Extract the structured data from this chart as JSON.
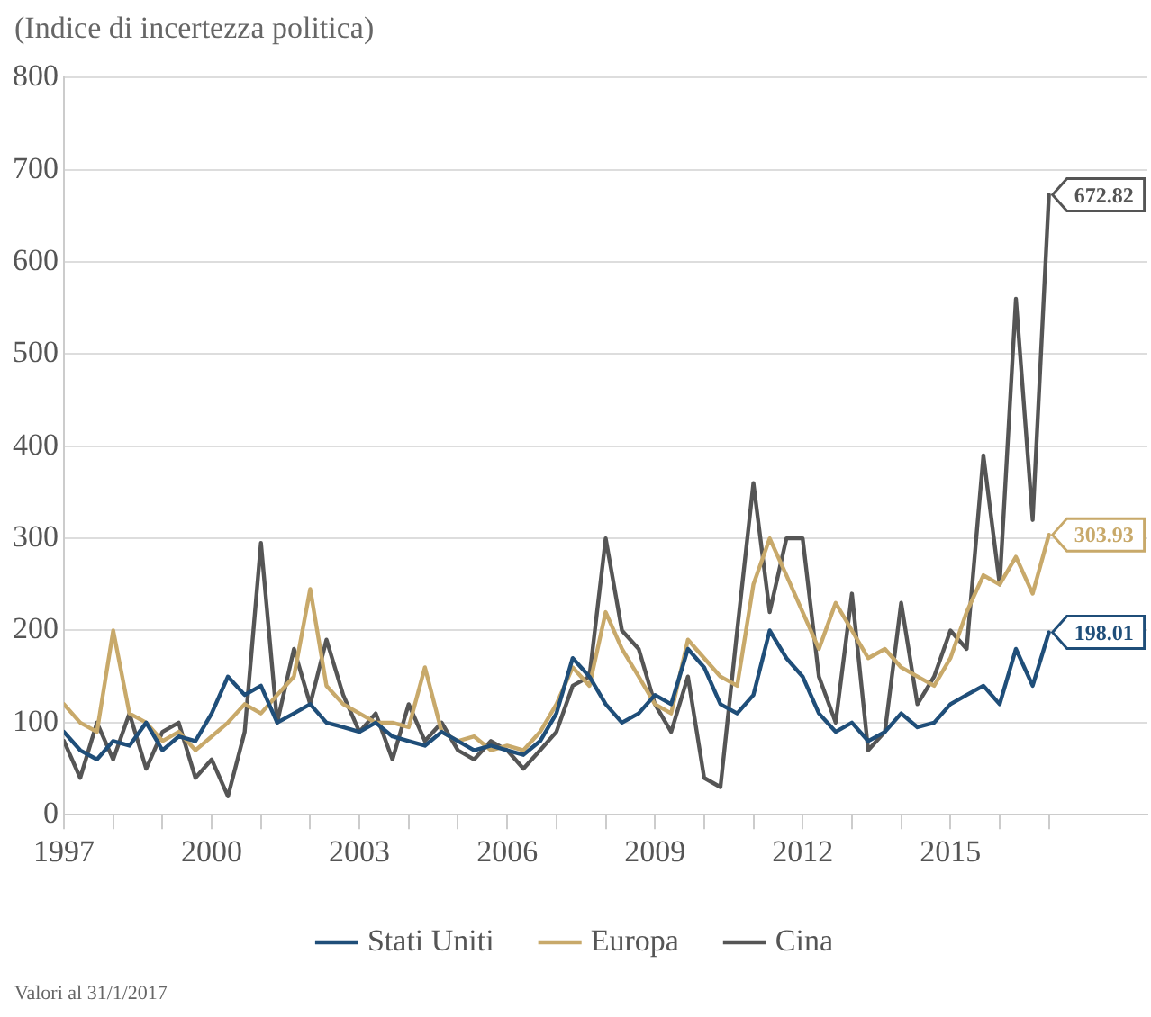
{
  "chart_data": {
    "type": "line",
    "ylabel": "(Indice di incertezza politica)",
    "x": [
      1997,
      1997.33,
      1997.67,
      1998,
      1998.33,
      1998.67,
      1999,
      1999.33,
      1999.67,
      2000,
      2000.33,
      2000.67,
      2001,
      2001.33,
      2001.67,
      2002,
      2002.33,
      2002.67,
      2003,
      2003.33,
      2003.67,
      2004,
      2004.33,
      2004.67,
      2005,
      2005.33,
      2005.67,
      2006,
      2006.33,
      2006.67,
      2007,
      2007.33,
      2007.67,
      2008,
      2008.33,
      2008.67,
      2009,
      2009.33,
      2009.67,
      2010,
      2010.33,
      2010.67,
      2011,
      2011.33,
      2011.67,
      2012,
      2012.33,
      2012.67,
      2013,
      2013.33,
      2013.67,
      2014,
      2014.33,
      2014.67,
      2015,
      2015.33,
      2015.67,
      2016,
      2016.33,
      2016.67,
      2017
    ],
    "series": [
      {
        "name": "Stati Uniti",
        "color": "#1f4e79",
        "values": [
          90,
          70,
          60,
          80,
          75,
          100,
          70,
          85,
          80,
          110,
          150,
          130,
          140,
          100,
          110,
          120,
          100,
          95,
          90,
          100,
          85,
          80,
          75,
          90,
          80,
          70,
          75,
          70,
          65,
          80,
          110,
          170,
          150,
          120,
          100,
          110,
          130,
          120,
          180,
          160,
          120,
          110,
          130,
          200,
          170,
          150,
          110,
          90,
          100,
          80,
          90,
          110,
          95,
          100,
          120,
          130,
          140,
          120,
          180,
          140,
          198.01
        ],
        "value_labels": [
          null,
          null,
          null,
          null,
          null,
          null,
          null,
          null,
          null,
          null,
          null,
          null,
          null,
          null,
          null,
          null,
          null,
          null,
          null,
          null,
          null,
          null,
          null,
          null,
          null,
          null,
          null,
          null,
          null,
          null,
          null,
          null,
          null,
          null,
          null,
          null,
          null,
          null,
          null,
          null,
          null,
          null,
          null,
          null,
          null,
          null,
          null,
          null,
          null,
          null,
          null,
          null,
          null,
          null,
          null,
          null,
          null,
          null,
          null,
          null,
          "198.01"
        ]
      },
      {
        "name": "Europa",
        "color": "#c8a96a",
        "values": [
          120,
          100,
          90,
          200,
          110,
          100,
          80,
          90,
          70,
          85,
          100,
          120,
          110,
          130,
          150,
          245,
          140,
          120,
          110,
          100,
          100,
          95,
          160,
          90,
          80,
          85,
          70,
          75,
          70,
          90,
          120,
          160,
          140,
          220,
          180,
          150,
          120,
          110,
          190,
          170,
          150,
          140,
          250,
          300,
          260,
          220,
          180,
          230,
          200,
          170,
          180,
          160,
          150,
          140,
          170,
          220,
          260,
          250,
          280,
          240,
          303.93
        ],
        "value_labels": [
          null,
          null,
          null,
          null,
          null,
          null,
          null,
          null,
          null,
          null,
          null,
          null,
          null,
          null,
          null,
          null,
          null,
          null,
          null,
          null,
          null,
          null,
          null,
          null,
          null,
          null,
          null,
          null,
          null,
          null,
          null,
          null,
          null,
          null,
          null,
          null,
          null,
          null,
          null,
          null,
          null,
          null,
          null,
          null,
          null,
          null,
          null,
          null,
          null,
          null,
          null,
          null,
          null,
          null,
          null,
          null,
          null,
          null,
          null,
          null,
          "303.93"
        ]
      },
      {
        "name": "Cina",
        "color": "#555555",
        "values": [
          80,
          40,
          100,
          60,
          110,
          50,
          90,
          100,
          40,
          60,
          20,
          90,
          295,
          100,
          180,
          120,
          190,
          130,
          90,
          110,
          60,
          120,
          80,
          100,
          70,
          60,
          80,
          70,
          50,
          70,
          90,
          140,
          150,
          300,
          200,
          180,
          120,
          90,
          150,
          40,
          30,
          200,
          360,
          220,
          300,
          300,
          150,
          100,
          240,
          70,
          90,
          230,
          120,
          150,
          200,
          180,
          390,
          250,
          560,
          320,
          672.82
        ],
        "value_labels": [
          null,
          null,
          null,
          null,
          null,
          null,
          null,
          null,
          null,
          null,
          null,
          null,
          null,
          null,
          null,
          null,
          null,
          null,
          null,
          null,
          null,
          null,
          null,
          null,
          null,
          null,
          null,
          null,
          null,
          null,
          null,
          null,
          null,
          null,
          null,
          null,
          null,
          null,
          null,
          null,
          null,
          null,
          null,
          null,
          null,
          null,
          null,
          null,
          null,
          null,
          null,
          null,
          null,
          null,
          null,
          null,
          null,
          null,
          null,
          null,
          "672.82"
        ]
      }
    ],
    "xlim": [
      1997,
      2019
    ],
    "xticks": [
      1997,
      {
        "value": 1998,
        "label": null
      },
      {
        "value": 1999,
        "label": null
      },
      2000,
      {
        "value": 2001,
        "label": null
      },
      {
        "value": 2002,
        "label": null
      },
      2003,
      {
        "value": 2004,
        "label": null
      },
      {
        "value": 2005,
        "label": null
      },
      2006,
      {
        "value": 2007,
        "label": null
      },
      {
        "value": 2008,
        "label": null
      },
      2009,
      {
        "value": 2010,
        "label": null
      },
      {
        "value": 2011,
        "label": null
      },
      2012,
      {
        "value": 2013,
        "label": null
      },
      {
        "value": 2014,
        "label": null
      },
      2015,
      {
        "value": 2016,
        "label": null
      },
      {
        "value": 2017,
        "label": null
      }
    ],
    "ylim": [
      0,
      800
    ],
    "yticks": [
      0,
      100,
      200,
      300,
      400,
      500,
      600,
      700,
      800
    ],
    "grid": "y",
    "legend": "bottom",
    "marker": "none",
    "line_style": "solid",
    "annotations": [
      "Valori al 31/1/2017"
    ]
  }
}
